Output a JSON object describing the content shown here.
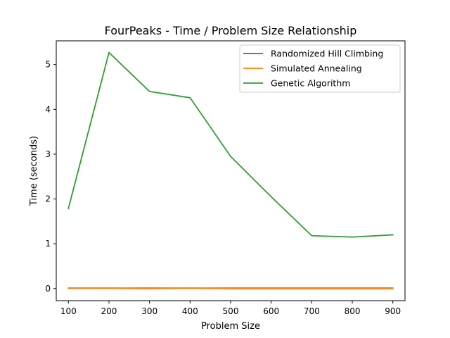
{
  "chart_data": {
    "type": "line",
    "title": "FourPeaks - Time / Problem Size Relationship",
    "xlabel": "Problem Size",
    "ylabel": "Time (seconds)",
    "x": [
      100,
      200,
      300,
      400,
      500,
      600,
      700,
      800,
      900
    ],
    "xlim": [
      70,
      930
    ],
    "ylim": [
      -0.27,
      5.53
    ],
    "xticks": [
      "100",
      "200",
      "300",
      "400",
      "500",
      "600",
      "700",
      "800",
      "900"
    ],
    "yticks": [
      "0",
      "1",
      "2",
      "3",
      "4",
      "5"
    ],
    "grid": false,
    "legend_position": "top-right",
    "series": [
      {
        "name": "Randomized Hill Climbing",
        "color": "#1f77b4",
        "values": [
          0.01,
          0.01,
          0.01,
          0.01,
          0.01,
          0.01,
          0.01,
          0.01,
          0.01
        ]
      },
      {
        "name": "Simulated Annealing",
        "color": "#ff7f0e",
        "values": [
          0.01,
          0.01,
          0.0,
          0.01,
          0.0,
          0.0,
          0.0,
          0.0,
          0.0
        ]
      },
      {
        "name": "Genetic Algorithm",
        "color": "#2ca02c",
        "values": [
          1.79,
          5.27,
          4.4,
          4.26,
          2.95,
          2.05,
          1.18,
          1.15,
          1.2
        ]
      }
    ]
  }
}
